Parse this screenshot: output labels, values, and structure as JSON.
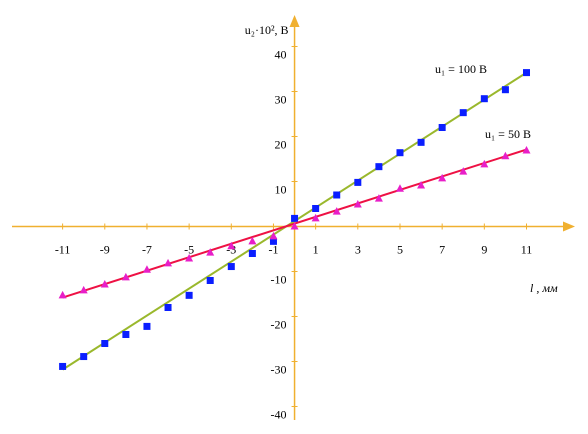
{
  "chart_data": {
    "type": "scatter",
    "y_label": "u₂·10², В",
    "x_label": "l , мм",
    "xlim": [
      -13.4,
      13.3
    ],
    "ylim": [
      -43,
      47
    ],
    "xticks": [
      -11,
      -9,
      -7,
      -5,
      -3,
      -1,
      1,
      3,
      5,
      7,
      9,
      11
    ],
    "yticks": [
      -40,
      -30,
      -20,
      -10,
      10,
      20,
      30,
      40
    ],
    "axis_color": "#f0b030",
    "series": [
      {
        "name": "u₁ = 100 В",
        "color": "#0a1eff",
        "marker": "square",
        "x": [
          -11,
          -10,
          -9,
          -8,
          -7,
          -6,
          -5,
          -4,
          -3,
          -2,
          -1,
          0,
          1,
          2,
          3,
          4,
          5,
          6,
          7,
          8,
          9,
          10,
          11
        ],
        "values": [
          -31.1,
          -28.9,
          -26,
          -24,
          -22.2,
          -18,
          -15.3,
          -12,
          -8.9,
          -6,
          -3.3,
          1.8,
          4,
          7,
          9.8,
          13.3,
          16.4,
          18.7,
          22,
          25.3,
          28.4,
          30.4,
          34.2
        ],
        "fit": {
          "color": "#9ab82c",
          "x": [
            -11,
            11
          ],
          "values": [
            -31.8,
            34.2
          ]
        }
      },
      {
        "name": "u₁ = 50 В",
        "color": "#e81ec8",
        "marker": "triangle",
        "x": [
          -11,
          -10,
          -9,
          -8,
          -7,
          -6,
          -5,
          -4,
          -3,
          -2,
          -1,
          0,
          1,
          2,
          3,
          4,
          5,
          6,
          7,
          8,
          9,
          10,
          11
        ],
        "values": [
          -15.3,
          -14.2,
          -12.9,
          -11.3,
          -9.6,
          -8.2,
          -7.1,
          -5.8,
          -4.4,
          -3.3,
          -2.2,
          0,
          1.8,
          3.3,
          4.9,
          6.2,
          8.4,
          9.1,
          10.7,
          12.2,
          13.8,
          15.6,
          16.9
        ],
        "fit": {
          "color": "#ee1144",
          "x": [
            -11,
            11
          ],
          "values": [
            -15.8,
            17.1
          ]
        }
      }
    ]
  }
}
